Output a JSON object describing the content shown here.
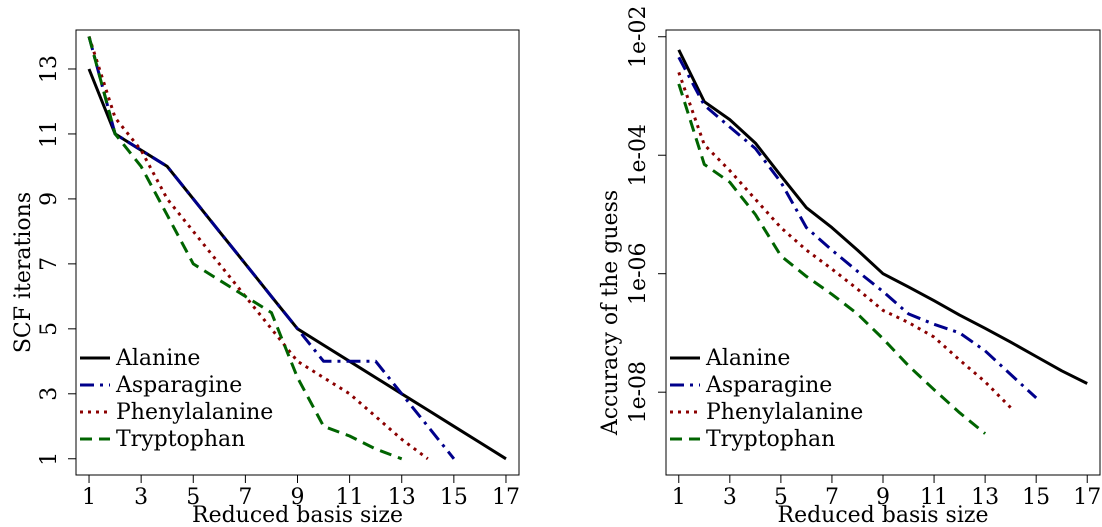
{
  "chart_data": [
    {
      "type": "line",
      "xlabel": "Reduced basis size",
      "ylabel": "SCF iterations",
      "xlim": [
        0.5,
        17.5
      ],
      "ylim": [
        0.5,
        14.2
      ],
      "xticks": [
        1,
        3,
        5,
        7,
        9,
        11,
        13,
        15,
        17
      ],
      "xtick_labels": [
        "1",
        "3",
        "5",
        "7",
        "9",
        "11",
        "13",
        "15",
        "17"
      ],
      "yticks": [
        1,
        3,
        5,
        7,
        9,
        11,
        13
      ],
      "ytick_labels": [
        "1",
        "3",
        "5",
        "7",
        "9",
        "11",
        "13"
      ],
      "grid": false,
      "legend_position": "bottom-left",
      "series": [
        {
          "name": "Alanine",
          "color": "#000000",
          "dash": "solid",
          "x": [
            1,
            2,
            3,
            4,
            5,
            6,
            7,
            8,
            9,
            10,
            11,
            12,
            13,
            14,
            15,
            16,
            17
          ],
          "y": [
            13,
            11,
            10.5,
            10,
            9,
            8,
            7,
            6,
            5,
            4.5,
            4,
            3.5,
            3,
            2.5,
            2,
            1.5,
            1
          ]
        },
        {
          "name": "Asparagine",
          "color": "#00008b",
          "dash": "dashdot",
          "x": [
            1,
            2,
            3,
            4,
            5,
            6,
            7,
            8,
            9,
            10,
            11,
            12,
            13,
            14,
            15
          ],
          "y": [
            14,
            11,
            10.5,
            10,
            9,
            8,
            7,
            6,
            5,
            4,
            4,
            4,
            3,
            2,
            1
          ]
        },
        {
          "name": "Phenylalanine",
          "color": "#8b0000",
          "dash": "dotted",
          "x": [
            1,
            2,
            3,
            4,
            5,
            6,
            7,
            8,
            9,
            10,
            11,
            12,
            13,
            14
          ],
          "y": [
            14,
            11.5,
            10.5,
            9,
            8,
            7,
            6,
            5,
            4,
            3.5,
            3,
            2.3,
            1.6,
            1
          ]
        },
        {
          "name": "Tryptophan",
          "color": "#006400",
          "dash": "dashed",
          "x": [
            1,
            2,
            3,
            4,
            5,
            6,
            7,
            8,
            9,
            10,
            11,
            12,
            13
          ],
          "y": [
            14,
            11,
            10,
            8.5,
            7,
            6.5,
            6,
            5.5,
            3.5,
            2,
            1.7,
            1.3,
            1
          ]
        }
      ]
    },
    {
      "type": "line",
      "xlabel": "Reduced basis size",
      "ylabel": "Accuracy of the guess",
      "yscale": "log",
      "xlim": [
        0.5,
        17.5
      ],
      "ylim": [
        4e-10,
        0.013
      ],
      "xticks": [
        1,
        3,
        5,
        7,
        9,
        11,
        13,
        15,
        17
      ],
      "xtick_labels": [
        "1",
        "3",
        "5",
        "7",
        "9",
        "11",
        "13",
        "15",
        "17"
      ],
      "yticks": [
        1e-08,
        1e-06,
        0.0001,
        0.01
      ],
      "ytick_labels": [
        "1e-08",
        "1e-06",
        "1e-04",
        "1e-02"
      ],
      "grid": false,
      "legend_position": "bottom-left",
      "series": [
        {
          "name": "Alanine",
          "color": "#000000",
          "dash": "solid",
          "x": [
            1,
            2,
            3,
            4,
            5,
            6,
            7,
            8,
            9,
            10,
            11,
            12,
            13,
            14,
            15,
            16,
            17
          ],
          "y": [
            0.006,
            0.0008,
            0.0004,
            0.00016,
            4.5e-05,
            1.3e-05,
            6e-06,
            2.5e-06,
            1e-06,
            6e-07,
            3.5e-07,
            2e-07,
            1.2e-07,
            7e-08,
            4e-08,
            2.3e-08,
            1.4e-08
          ]
        },
        {
          "name": "Asparagine",
          "color": "#00008b",
          "dash": "dashdot",
          "x": [
            1,
            2,
            3,
            4,
            5,
            6,
            7,
            8,
            9,
            10,
            11,
            12,
            13,
            14,
            15
          ],
          "y": [
            0.0045,
            0.0007,
            0.0003,
            0.00013,
            3.5e-05,
            6e-06,
            2.5e-06,
            1.1e-06,
            5e-07,
            2.1e-07,
            1.4e-07,
            1e-07,
            5e-08,
            2e-08,
            8e-09
          ]
        },
        {
          "name": "Phenylalanine",
          "color": "#8b0000",
          "dash": "dotted",
          "x": [
            1,
            2,
            3,
            4,
            5,
            6,
            7,
            8,
            9,
            10,
            11,
            12,
            13,
            14
          ],
          "y": [
            0.0025,
            0.00015,
            5.5e-05,
            1.8e-05,
            6e-06,
            2.5e-06,
            1.2e-06,
            5.5e-07,
            2.4e-07,
            1.5e-07,
            8.5e-08,
            3.5e-08,
            1.5e-08,
            5.5e-09
          ]
        },
        {
          "name": "Tryptophan",
          "color": "#006400",
          "dash": "dashed",
          "x": [
            1,
            2,
            3,
            4,
            5,
            6,
            7,
            8,
            9,
            10,
            11,
            12,
            13
          ],
          "y": [
            0.0016,
            7e-05,
            3.5e-05,
            1e-05,
            2e-06,
            9e-07,
            4.5e-07,
            2.1e-07,
            8e-08,
            2.8e-08,
            1.1e-08,
            4.5e-09,
            2e-09
          ]
        }
      ]
    }
  ]
}
